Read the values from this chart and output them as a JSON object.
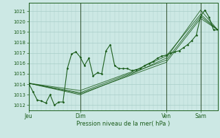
{
  "bg_color": "#cce8e4",
  "grid_color": "#a8cdc8",
  "line_color": "#1a5c1a",
  "xlabel": "Pression niveau de la mer( hPa )",
  "xlabel_color": "#1a5c1a",
  "tick_color": "#1a5c1a",
  "vline_color": "#3a5a3a",
  "ylim": [
    1011.5,
    1021.8
  ],
  "yticks": [
    1012,
    1013,
    1014,
    1015,
    1016,
    1017,
    1018,
    1019,
    1020,
    1021
  ],
  "xlim": [
    0,
    264
  ],
  "day_positions": [
    0,
    72,
    192,
    240
  ],
  "day_labels": [
    "Jeu",
    "Dim",
    "Ven",
    "Sam"
  ],
  "series_main": [
    [
      0,
      1014.1
    ],
    [
      6,
      1013.3
    ],
    [
      12,
      1012.5
    ],
    [
      18,
      1012.4
    ],
    [
      24,
      1012.2
    ],
    [
      30,
      1013.0
    ],
    [
      36,
      1012.0
    ],
    [
      42,
      1012.3
    ],
    [
      48,
      1012.3
    ],
    [
      54,
      1015.5
    ],
    [
      60,
      1016.9
    ],
    [
      66,
      1017.1
    ],
    [
      72,
      1016.6
    ],
    [
      78,
      1015.8
    ],
    [
      84,
      1016.5
    ],
    [
      90,
      1014.8
    ],
    [
      96,
      1015.1
    ],
    [
      102,
      1015.0
    ],
    [
      108,
      1017.2
    ],
    [
      114,
      1017.8
    ],
    [
      120,
      1015.8
    ],
    [
      126,
      1015.5
    ],
    [
      132,
      1015.5
    ],
    [
      138,
      1015.5
    ],
    [
      144,
      1015.3
    ],
    [
      150,
      1015.4
    ],
    [
      156,
      1015.5
    ],
    [
      162,
      1015.8
    ],
    [
      168,
      1016.0
    ],
    [
      174,
      1016.2
    ],
    [
      180,
      1016.5
    ],
    [
      186,
      1016.7
    ],
    [
      192,
      1016.8
    ],
    [
      198,
      1017.0
    ],
    [
      204,
      1017.1
    ],
    [
      210,
      1017.2
    ],
    [
      216,
      1017.5
    ],
    [
      222,
      1017.8
    ],
    [
      228,
      1018.2
    ],
    [
      234,
      1018.7
    ],
    [
      240,
      1020.5
    ],
    [
      246,
      1021.1
    ],
    [
      252,
      1020.4
    ],
    [
      258,
      1019.2
    ],
    [
      264,
      1019.2
    ]
  ],
  "series_smooth1": [
    [
      0,
      1014.1
    ],
    [
      72,
      1013.2
    ],
    [
      144,
      1015.1
    ],
    [
      192,
      1016.3
    ],
    [
      240,
      1020.5
    ],
    [
      264,
      1019.2
    ]
  ],
  "series_smooth2": [
    [
      0,
      1014.1
    ],
    [
      72,
      1013.0
    ],
    [
      144,
      1015.0
    ],
    [
      192,
      1016.5
    ],
    [
      240,
      1021.1
    ],
    [
      264,
      1019.2
    ]
  ],
  "series_smooth3": [
    [
      0,
      1014.1
    ],
    [
      72,
      1013.4
    ],
    [
      144,
      1015.2
    ],
    [
      192,
      1016.7
    ],
    [
      240,
      1020.7
    ],
    [
      264,
      1019.2
    ]
  ],
  "series_smooth4": [
    [
      0,
      1014.1
    ],
    [
      72,
      1013.1
    ],
    [
      144,
      1014.9
    ],
    [
      192,
      1016.1
    ],
    [
      240,
      1020.3
    ],
    [
      264,
      1019.2
    ]
  ]
}
